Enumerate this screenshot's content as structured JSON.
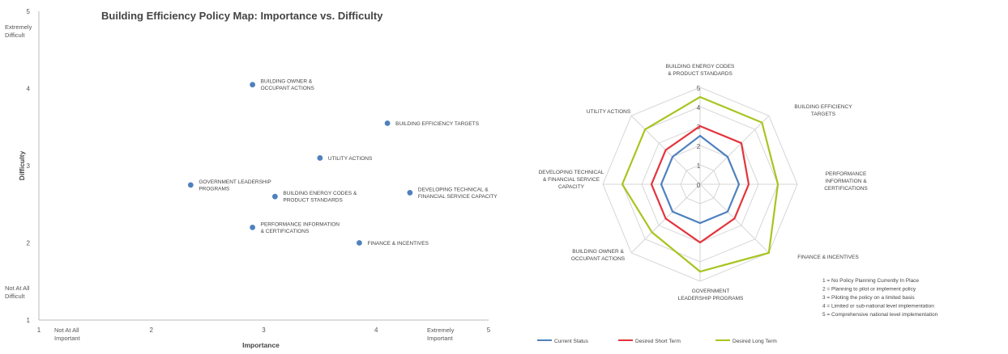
{
  "chart_data": [
    {
      "type": "scatter",
      "title": "Building Efficiency Policy Map: Importance vs. Difficulty",
      "xlabel": "Importance",
      "ylabel": "Difficulty",
      "xlim": [
        1,
        5
      ],
      "ylim": [
        1,
        5
      ],
      "x_ticks": [
        "1",
        "2",
        "3",
        "4",
        "5"
      ],
      "y_ticks": [
        "1",
        "2",
        "3",
        "4",
        "5"
      ],
      "x_low_label": [
        "Not At All",
        "Important"
      ],
      "x_high_label": [
        "Extremely",
        "Important"
      ],
      "y_low_label": [
        "Not At All",
        "Difficult"
      ],
      "y_high_label": [
        "Extremely",
        "Difficult"
      ],
      "grid": false,
      "point_color": "#4f81bd",
      "points": [
        {
          "x": 2.9,
          "y": 4.05,
          "label": [
            "BUILDING OWNER &",
            "OCCUPANT ACTIONS"
          ]
        },
        {
          "x": 4.1,
          "y": 3.55,
          "label": [
            "BUILDING EFFICIENCY TARGETS"
          ]
        },
        {
          "x": 3.5,
          "y": 3.1,
          "label": [
            "UTILITY ACTIONS"
          ]
        },
        {
          "x": 2.35,
          "y": 2.75,
          "label": [
            "GOVERNMENT LEADERSHIP",
            "PROGRAMS"
          ]
        },
        {
          "x": 3.1,
          "y": 2.6,
          "label": [
            "BUILDING ENERGY CODES &",
            "PRODUCT STANDARDS"
          ]
        },
        {
          "x": 4.3,
          "y": 2.65,
          "label": [
            "DEVELOPING TECHNICAL &",
            "FINANCIAL SERVICE CAPACITY"
          ]
        },
        {
          "x": 2.9,
          "y": 2.2,
          "label": [
            "PERFORMANCE INFORMATION",
            "& CERTIFICATIONS"
          ]
        },
        {
          "x": 3.85,
          "y": 2.0,
          "label": [
            "FINANCE & INCENTIVES"
          ]
        }
      ]
    },
    {
      "type": "radar",
      "axes": [
        [
          "BUILDING ENERGY CODES",
          "& PRODUCT STANDARDS"
        ],
        [
          "BUILDING EFFICIENCY",
          "TARGETS"
        ],
        [
          "PERFORMANCE",
          "INFORMATION &",
          "CERTIFICATIONS"
        ],
        [
          "FINANCE & INCENTIVES"
        ],
        [
          "GOVERNMENT",
          "LEADERSHIP PROGRAMS"
        ],
        [
          "BUILDING OWNER &",
          "OCCUPANT ACTIONS"
        ],
        [
          "DEVELOPING TECHNICAL",
          "& FINANCIAL SERVICE",
          "CAPACITY"
        ],
        [
          "UTILITY ACTIONS"
        ]
      ],
      "rlim": [
        0,
        5
      ],
      "ticks": [
        "0",
        "1",
        "2",
        "3",
        "4",
        "5"
      ],
      "series": [
        {
          "name": "Current Status",
          "color": "#4f81bd",
          "values": [
            2.5,
            2,
            2,
            2,
            2,
            2,
            2,
            2
          ]
        },
        {
          "name": "Desired Short Term",
          "color": "#e3343c",
          "values": [
            3,
            3,
            2.5,
            2.5,
            3,
            2.5,
            2.5,
            2.5
          ]
        },
        {
          "name": "Desired Long Term",
          "color": "#a7c520",
          "values": [
            4.5,
            4.5,
            4,
            5,
            4.5,
            3.5,
            4,
            4
          ]
        }
      ],
      "notes": [
        "1 = No Policy Planning Currently In Place",
        "2 = Planning to pilot or implement policy",
        "3 = Piloting the policy on a limited basis",
        "4 = Limited or sub-national level implementation",
        "5 = Comprehensive national level implementation"
      ]
    }
  ]
}
